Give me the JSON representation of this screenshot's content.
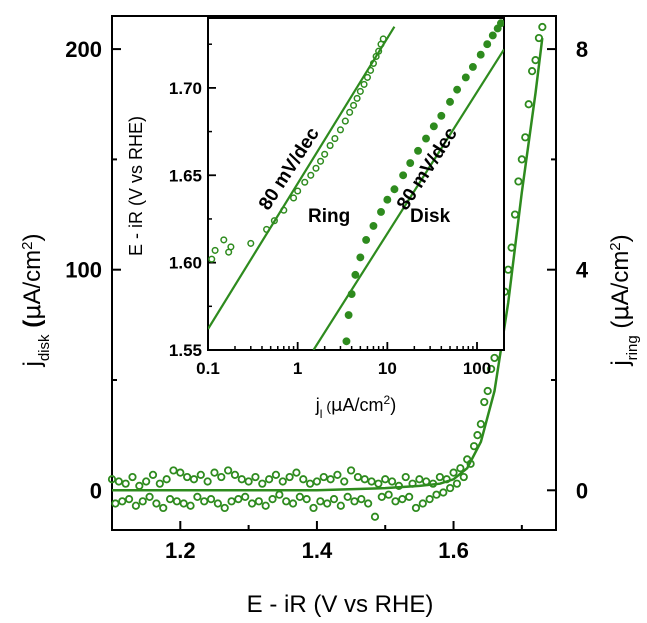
{
  "chart_data": [
    {
      "type": "scatter",
      "xlabel": "E - iR (V vs RHE)",
      "ylabel_left": {
        "main": "j",
        "sub": "disk",
        "unit_pre": "(",
        "unit_mu": "μ",
        "unit_post": "A/cm",
        "unit_sup": "2",
        "unit_close": ")"
      },
      "ylabel_right": {
        "main": "j",
        "sub": "ring",
        "unit_pre": "(",
        "unit_mu": "μ",
        "unit_post": "A/cm",
        "unit_sup": "2",
        "unit_close": ")"
      },
      "xlim": [
        1.1,
        1.75
      ],
      "ylim_left": [
        -18,
        215
      ],
      "ylim_right": [
        -0.72,
        8.6
      ],
      "x_ticks": [
        "1.2",
        "1.4",
        "1.6"
      ],
      "x_tick_values": [
        1.2,
        1.4,
        1.6
      ],
      "y_ticks_left": [
        "0",
        "100",
        "200"
      ],
      "y_tick_values_left": [
        0,
        100,
        200
      ],
      "y_ticks_right": [
        "0",
        "4",
        "8"
      ],
      "y_tick_values_right": [
        0,
        4,
        8
      ],
      "series": [
        {
          "marker": "open-circle",
          "color": "#2e8b1e",
          "x": [
            1.1,
            1.11,
            1.12,
            1.13,
            1.14,
            1.15,
            1.16,
            1.17,
            1.18,
            1.19,
            1.2,
            1.21,
            1.22,
            1.23,
            1.24,
            1.25,
            1.26,
            1.27,
            1.28,
            1.29,
            1.3,
            1.31,
            1.32,
            1.33,
            1.34,
            1.35,
            1.36,
            1.37,
            1.38,
            1.39,
            1.4,
            1.41,
            1.42,
            1.43,
            1.44,
            1.45,
            1.46,
            1.47,
            1.48,
            1.49,
            1.5,
            1.51,
            1.52,
            1.53,
            1.54,
            1.55,
            1.56,
            1.57,
            1.58,
            1.59,
            1.6,
            1.61,
            1.62,
            1.63,
            1.64,
            1.65,
            1.66,
            1.67,
            1.68,
            1.69,
            1.7,
            1.71,
            1.72,
            1.73,
            1.105,
            1.115,
            1.125,
            1.135,
            1.145,
            1.155,
            1.165,
            1.175,
            1.185,
            1.195,
            1.205,
            1.215,
            1.225,
            1.235,
            1.245,
            1.255,
            1.265,
            1.275,
            1.285,
            1.295,
            1.305,
            1.315,
            1.325,
            1.335,
            1.345,
            1.355,
            1.365,
            1.375,
            1.385,
            1.395,
            1.405,
            1.415,
            1.425,
            1.435,
            1.445,
            1.455,
            1.465,
            1.475,
            1.485,
            1.495,
            1.505,
            1.515,
            1.525,
            1.535,
            1.545,
            1.555,
            1.565,
            1.575,
            1.585,
            1.595,
            1.605,
            1.615,
            1.625,
            1.635,
            1.645,
            1.655,
            1.665,
            1.675,
            1.685,
            1.695,
            1.705,
            1.715,
            1.725
          ],
          "y": [
            5,
            4,
            3,
            6,
            2,
            4,
            7,
            3,
            5,
            9,
            8,
            6,
            5,
            7,
            4,
            8,
            6,
            9,
            7,
            5,
            4,
            6,
            3,
            5,
            7,
            4,
            6,
            8,
            5,
            3,
            4,
            6,
            5,
            7,
            4,
            9,
            6,
            5,
            4,
            3,
            5,
            4,
            2,
            6,
            3,
            5,
            4,
            3,
            6,
            5,
            8,
            10,
            14,
            20,
            30,
            45,
            60,
            75,
            100,
            125,
            150,
            175,
            195,
            210,
            -6,
            -5,
            -4,
            -7,
            -5,
            -3,
            -6,
            -8,
            -4,
            -5,
            -6,
            -7,
            -3,
            -5,
            -4,
            -6,
            -8,
            -5,
            -4,
            -3,
            -6,
            -5,
            -7,
            -4,
            -2,
            -5,
            -6,
            -3,
            -4,
            -8,
            -5,
            -6,
            -4,
            -7,
            -3,
            -5,
            -4,
            -6,
            -12,
            -3,
            -2,
            -5,
            -4,
            -3,
            -8,
            -6,
            -4,
            -2,
            -1,
            1,
            3,
            6,
            12,
            25,
            40,
            55,
            70,
            90,
            110,
            140,
            160,
            190,
            205
          ]
        },
        {
          "marker": "line",
          "color": "#2e8b1e",
          "x": [
            1.1,
            1.2,
            1.3,
            1.4,
            1.5,
            1.55,
            1.58,
            1.6,
            1.62,
            1.64,
            1.66,
            1.68,
            1.7,
            1.72,
            1.73
          ],
          "y": [
            0,
            0,
            0,
            0,
            1,
            2,
            3,
            5,
            10,
            22,
            45,
            85,
            135,
            180,
            205
          ]
        }
      ],
      "inset": {
        "xlabel": {
          "main": "j",
          "sub": "l",
          "unit_pre": " (",
          "unit_mu": "μ",
          "unit_post": "A/cm",
          "unit_sup": "2",
          "unit_close": ")"
        },
        "ylabel": "E - iR (V vs RHE)",
        "x_scale": "log",
        "xlim": [
          0.1,
          200
        ],
        "ylim": [
          1.55,
          1.74
        ],
        "x_ticks": [
          "0.1",
          "1",
          "10",
          "100"
        ],
        "x_tick_values": [
          0.1,
          1,
          10,
          100
        ],
        "y_ticks": [
          "1.55",
          "1.60",
          "1.65",
          "1.70"
        ],
        "y_tick_values": [
          1.55,
          1.6,
          1.65,
          1.7
        ],
        "annotations": [
          "80 mV/dec",
          "80 mV/dec",
          "Ring",
          "Disk"
        ],
        "series": [
          {
            "name": "Ring",
            "marker": "open-circle",
            "color": "#2e8b1e",
            "x": [
              0.11,
              0.12,
              0.15,
              0.17,
              0.18,
              0.3,
              0.45,
              0.55,
              0.7,
              0.9,
              1.0,
              1.2,
              1.4,
              1.6,
              1.8,
              2.0,
              2.3,
              2.6,
              3.0,
              3.4,
              3.8,
              4.2,
              4.6,
              5.0,
              5.5,
              6.0,
              6.5,
              7.0,
              7.5,
              8.0,
              8.5,
              9.0
            ],
            "y": [
              1.602,
              1.607,
              1.613,
              1.606,
              1.609,
              1.611,
              1.619,
              1.624,
              1.63,
              1.637,
              1.641,
              1.646,
              1.65,
              1.654,
              1.658,
              1.662,
              1.667,
              1.671,
              1.676,
              1.681,
              1.686,
              1.69,
              1.694,
              1.698,
              1.702,
              1.706,
              1.71,
              1.714,
              1.718,
              1.721,
              1.725,
              1.728
            ]
          },
          {
            "name": "Ring fit",
            "marker": "line",
            "color": "#2e8b1e",
            "x": [
              0.1,
              12.0
            ],
            "y": [
              1.562,
              1.735
            ]
          },
          {
            "name": "Disk",
            "marker": "filled-circle",
            "color": "#2e8b1e",
            "x": [
              3.5,
              3.7,
              4.0,
              4.4,
              5.0,
              5.8,
              7.0,
              8.5,
              10,
              12,
              15,
              18,
              22,
              27,
              33,
              40,
              50,
              60,
              75,
              90,
              110,
              130,
              150,
              170,
              185
            ],
            "y": [
              1.555,
              1.57,
              1.582,
              1.593,
              1.603,
              1.613,
              1.621,
              1.629,
              1.636,
              1.642,
              1.65,
              1.657,
              1.664,
              1.671,
              1.678,
              1.684,
              1.692,
              1.699,
              1.706,
              1.712,
              1.719,
              1.725,
              1.73,
              1.734,
              1.737
            ]
          },
          {
            "name": "Disk fit",
            "marker": "line",
            "color": "#2e8b1e",
            "x": [
              1.5,
              200
            ],
            "y": [
              1.55,
              1.722
            ]
          }
        ]
      }
    }
  ]
}
